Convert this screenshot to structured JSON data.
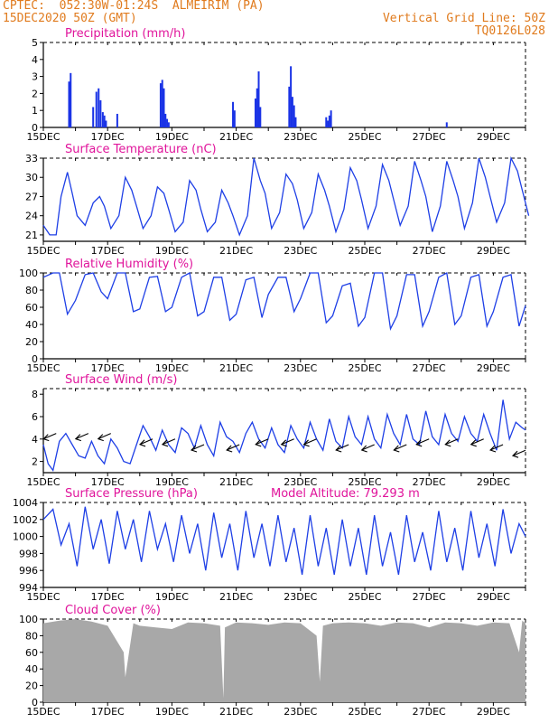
{
  "header": {
    "left_line1": "CPTEC:  052:30W-01:24S  ALMEIRIM (PA)",
    "left_line2": "15DEC2020 50Z (GMT)",
    "right_line1": "Vertical Grid Line: 50Z",
    "right_line2": "TQ0126L028"
  },
  "colors": {
    "header": "#e07b1e",
    "title": "#e0149b",
    "line": "#1e3fe6",
    "bars": "#1a33e6",
    "cloud": "#a8a8a8",
    "arrow": "#000000"
  },
  "x_ticks": [
    "15DEC",
    "17DEC",
    "19DEC",
    "21DEC",
    "23DEC",
    "25DEC",
    "27DEC",
    "29DEC"
  ],
  "chart_data": [
    {
      "type": "bar",
      "title": "Precipitation (mm/h)",
      "ylim": [
        0,
        5
      ],
      "yticks": [
        "0",
        "1",
        "2",
        "3",
        "4",
        "5"
      ],
      "x_days": [
        0.8,
        0.85,
        1.55,
        1.65,
        1.72,
        1.78,
        1.85,
        1.9,
        1.95,
        2.3,
        3.65,
        3.7,
        3.75,
        3.8,
        3.85,
        3.9,
        5.9,
        5.95,
        6.6,
        6.65,
        6.7,
        6.75,
        7.65,
        7.7,
        7.75,
        7.8,
        7.85,
        8.8,
        8.85,
        8.9,
        8.95,
        12.55
      ],
      "values": [
        2.7,
        3.2,
        1.2,
        2.1,
        2.3,
        1.6,
        0.9,
        0.7,
        0.4,
        0.8,
        2.6,
        2.8,
        2.3,
        0.8,
        0.5,
        0.3,
        1.5,
        1.0,
        1.7,
        2.3,
        3.3,
        1.2,
        2.4,
        3.6,
        1.8,
        1.3,
        0.6,
        0.6,
        0.4,
        0.7,
        1.0,
        0.3
      ]
    },
    {
      "type": "line",
      "title": "Surface Temperature (nC)",
      "ylim": [
        20,
        33
      ],
      "yticks": [
        "21",
        "24",
        "27",
        "30",
        "33"
      ],
      "x_days": [
        0,
        0.2,
        0.4,
        0.55,
        0.75,
        0.9,
        1.05,
        1.3,
        1.55,
        1.75,
        1.9,
        2.1,
        2.35,
        2.55,
        2.75,
        2.9,
        3.1,
        3.35,
        3.55,
        3.75,
        3.9,
        4.1,
        4.35,
        4.55,
        4.75,
        4.9,
        5.1,
        5.35,
        5.55,
        5.75,
        5.9,
        6.1,
        6.35,
        6.55,
        6.75,
        6.9,
        7.1,
        7.35,
        7.55,
        7.75,
        7.9,
        8.1,
        8.35,
        8.55,
        8.75,
        8.9,
        9.1,
        9.35,
        9.55,
        9.75,
        9.9,
        10.1,
        10.35,
        10.55,
        10.75,
        10.9,
        11.1,
        11.35,
        11.55,
        11.75,
        11.9,
        12.1,
        12.35,
        12.55,
        12.75,
        12.9,
        13.1,
        13.35,
        13.55,
        13.75,
        13.9,
        14.1,
        14.35,
        14.55,
        14.75,
        14.9,
        15.1
      ],
      "values": [
        22.5,
        21.0,
        21.0,
        27.0,
        30.8,
        27.5,
        24.0,
        22.5,
        26.0,
        27.0,
        25.5,
        22.0,
        24.0,
        30.0,
        28.0,
        25.5,
        22.0,
        24.0,
        28.5,
        27.5,
        25.0,
        21.5,
        23.0,
        29.5,
        28.0,
        25.0,
        21.5,
        23.0,
        28.0,
        26.0,
        24.0,
        21.0,
        24.0,
        33.0,
        29.5,
        27.5,
        22.0,
        24.5,
        30.5,
        29.0,
        26.5,
        22.0,
        24.5,
        30.5,
        28.0,
        25.5,
        21.5,
        25.0,
        31.5,
        29.5,
        26.5,
        22.0,
        25.5,
        32.0,
        29.5,
        26.5,
        22.5,
        25.5,
        32.5,
        29.5,
        27.0,
        21.5,
        25.5,
        32.5,
        29.5,
        27.0,
        22.0,
        26.0,
        33.0,
        30.0,
        27.0,
        23.0,
        26.0,
        33.0,
        31.0,
        28.0,
        24.0
      ]
    },
    {
      "type": "line",
      "title": "Relative Humidity (%)",
      "ylim": [
        0,
        100
      ],
      "yticks": [
        "0",
        "20",
        "40",
        "60",
        "80",
        "100"
      ],
      "x_days": [
        0,
        0.3,
        0.5,
        0.75,
        1.0,
        1.3,
        1.55,
        1.8,
        2.0,
        2.3,
        2.55,
        2.8,
        3.0,
        3.3,
        3.55,
        3.8,
        4.0,
        4.3,
        4.55,
        4.8,
        5.0,
        5.3,
        5.55,
        5.8,
        6.0,
        6.3,
        6.55,
        6.8,
        7.0,
        7.3,
        7.55,
        7.8,
        8.0,
        8.3,
        8.55,
        8.8,
        9.0,
        9.3,
        9.55,
        9.8,
        10.0,
        10.3,
        10.55,
        10.8,
        11.0,
        11.3,
        11.55,
        11.8,
        12.0,
        12.3,
        12.55,
        12.8,
        13.0,
        13.3,
        13.55,
        13.8,
        14.0,
        14.3,
        14.55,
        14.8,
        15.0
      ],
      "values": [
        95,
        100,
        100,
        52,
        68,
        98,
        100,
        78,
        70,
        100,
        100,
        55,
        58,
        95,
        96,
        55,
        60,
        95,
        100,
        50,
        55,
        95,
        95,
        45,
        52,
        92,
        95,
        48,
        75,
        95,
        95,
        55,
        70,
        100,
        100,
        42,
        50,
        85,
        88,
        38,
        48,
        100,
        100,
        35,
        50,
        98,
        98,
        38,
        55,
        95,
        100,
        40,
        50,
        95,
        98,
        38,
        55,
        95,
        98,
        38,
        62
      ]
    },
    {
      "type": "line",
      "title": "Surface Wind (m/s)",
      "ylim": [
        1,
        8.5
      ],
      "yticks": [
        "2",
        "4",
        "6",
        "8"
      ],
      "x_days": [
        0,
        0.15,
        0.3,
        0.5,
        0.7,
        0.9,
        1.1,
        1.3,
        1.5,
        1.7,
        1.9,
        2.1,
        2.3,
        2.5,
        2.7,
        2.9,
        3.1,
        3.3,
        3.5,
        3.7,
        3.9,
        4.1,
        4.3,
        4.5,
        4.7,
        4.9,
        5.1,
        5.3,
        5.5,
        5.7,
        5.9,
        6.1,
        6.3,
        6.5,
        6.7,
        6.9,
        7.1,
        7.3,
        7.5,
        7.7,
        7.9,
        8.1,
        8.3,
        8.5,
        8.7,
        8.9,
        9.1,
        9.3,
        9.5,
        9.7,
        9.9,
        10.1,
        10.3,
        10.5,
        10.7,
        10.9,
        11.1,
        11.3,
        11.5,
        11.7,
        11.9,
        12.1,
        12.3,
        12.5,
        12.7,
        12.9,
        13.1,
        13.3,
        13.5,
        13.7,
        13.9,
        14.1,
        14.3,
        14.5,
        14.7,
        14.9,
        15.0
      ],
      "values": [
        3.5,
        1.8,
        1.2,
        3.8,
        4.5,
        3.5,
        2.5,
        2.3,
        3.8,
        2.5,
        1.8,
        4.0,
        3.2,
        2.0,
        1.8,
        3.5,
        5.2,
        4.2,
        3.0,
        4.8,
        3.5,
        2.8,
        5.0,
        4.5,
        3.2,
        5.2,
        3.5,
        2.5,
        5.5,
        4.2,
        3.8,
        2.8,
        4.5,
        5.5,
        4.0,
        3.2,
        5.0,
        3.5,
        2.8,
        5.2,
        4.0,
        3.2,
        5.5,
        4.0,
        3.0,
        5.8,
        3.8,
        3.2,
        6.0,
        4.2,
        3.5,
        6.0,
        4.0,
        3.2,
        6.2,
        4.5,
        3.5,
        6.2,
        4.0,
        3.5,
        6.5,
        4.2,
        3.5,
        6.2,
        4.5,
        3.8,
        6.0,
        4.5,
        3.8,
        6.2,
        4.5,
        3.0,
        7.5,
        4.0,
        5.5,
        5.0,
        4.8
      ],
      "arrow_days": [
        0.4,
        1.4,
        2.1,
        3.4,
        4.1,
        5.0,
        6.1,
        7.0,
        7.8,
        8.5,
        9.5,
        10.3,
        11.3,
        12.0,
        12.9,
        13.7,
        14.3,
        15.0
      ],
      "arrow_speeds": [
        4.5,
        4.5,
        4.5,
        4.0,
        4.0,
        3.5,
        3.5,
        4.0,
        4.0,
        4.0,
        3.5,
        3.5,
        3.5,
        4.0,
        4.0,
        4.0,
        3.5,
        3.0
      ]
    },
    {
      "type": "line",
      "title": "Surface Pressure (hPa)",
      "annotation": "Model Altitude: 79.293 m",
      "ylim": [
        994,
        1004
      ],
      "yticks": [
        "994",
        "996",
        "998",
        "1000",
        "1002",
        "1004"
      ],
      "x_days": [
        0,
        0.3,
        0.55,
        0.8,
        1.05,
        1.3,
        1.55,
        1.8,
        2.05,
        2.3,
        2.55,
        2.8,
        3.05,
        3.3,
        3.55,
        3.8,
        4.05,
        4.3,
        4.55,
        4.8,
        5.05,
        5.3,
        5.55,
        5.8,
        6.05,
        6.3,
        6.55,
        6.8,
        7.05,
        7.3,
        7.55,
        7.8,
        8.05,
        8.3,
        8.55,
        8.8,
        9.05,
        9.3,
        9.55,
        9.8,
        10.05,
        10.3,
        10.55,
        10.8,
        11.05,
        11.3,
        11.55,
        11.8,
        12.05,
        12.3,
        12.55,
        12.8,
        13.05,
        13.3,
        13.55,
        13.8,
        14.05,
        14.3,
        14.55,
        14.8,
        15.0
      ],
      "values": [
        1002,
        1003.2,
        999,
        1001.5,
        996.5,
        1003.5,
        998.5,
        1002,
        996.8,
        1003,
        998.5,
        1002,
        997,
        1003,
        998.5,
        1001.5,
        997,
        1002.5,
        998,
        1001.5,
        996,
        1002.8,
        997.5,
        1001.5,
        996,
        1003,
        997.5,
        1001.5,
        996.5,
        1002.5,
        997,
        1001,
        995.5,
        1002.5,
        996.5,
        1001,
        995.5,
        1002,
        996.5,
        1001,
        995.5,
        1002.5,
        996.5,
        1000.5,
        995.5,
        1002.5,
        997,
        1000.5,
        996,
        1003,
        997,
        1001,
        996,
        1003,
        997.5,
        1001.5,
        996.5,
        1003.2,
        998,
        1001.5,
        1000
      ]
    },
    {
      "type": "area",
      "title": "Cloud Cover (%)",
      "ylim": [
        0,
        100
      ],
      "yticks": [
        "0",
        "20",
        "40",
        "60",
        "80",
        "100"
      ],
      "x_days": [
        0,
        0.5,
        1.0,
        1.5,
        2.0,
        2.5,
        2.55,
        2.8,
        3.0,
        3.5,
        4.0,
        4.5,
        5.0,
        5.5,
        5.6,
        5.65,
        6.0,
        6.5,
        7.0,
        7.5,
        8.0,
        8.5,
        8.6,
        8.7,
        9.0,
        9.5,
        10.0,
        10.5,
        11.0,
        11.5,
        12.0,
        12.5,
        13.0,
        13.5,
        14.0,
        14.5,
        14.8,
        14.9,
        15.0
      ],
      "values": [
        95,
        98,
        100,
        97,
        92,
        60,
        30,
        95,
        92,
        90,
        88,
        96,
        95,
        92,
        5,
        90,
        96,
        95,
        93,
        96,
        95,
        80,
        25,
        92,
        95,
        96,
        95,
        92,
        96,
        95,
        90,
        96,
        95,
        92,
        96,
        95,
        60,
        98,
        95
      ]
    }
  ]
}
